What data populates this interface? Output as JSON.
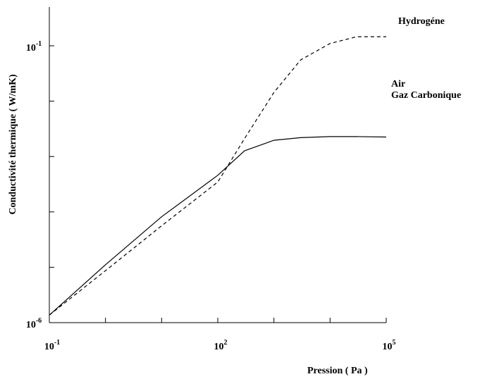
{
  "chart_data": {
    "type": "line",
    "xscale": "log",
    "yscale": "log",
    "xlabel": "Pression ( Pa )",
    "ylabel": "Conductivité thermique  ( W/mK)",
    "x_ticks": [
      {
        "value": 0.1,
        "base": "10",
        "exp": "-1"
      },
      {
        "value": 100,
        "base": "10",
        "exp": "2"
      },
      {
        "value": 100000,
        "base": "10",
        "exp": "5"
      }
    ],
    "y_ticks": [
      {
        "value": 1e-06,
        "base": "10",
        "exp": "-6"
      },
      {
        "value": 0.1,
        "base": "10",
        "exp": "-1"
      }
    ],
    "xlim": [
      0.1,
      100000
    ],
    "ylim": [
      1e-06,
      0.1
    ],
    "grid": false,
    "series": [
      {
        "name": "Hydrogéne",
        "style": "dashed",
        "color": "#000000",
        "x": [
          0.1,
          1,
          10,
          100,
          300,
          1000,
          3000,
          10000,
          30000,
          100000
        ],
        "y": [
          1.37e-06,
          8.7e-06,
          5.61e-05,
          0.000346,
          0.00211,
          0.0144,
          0.0557,
          0.11,
          0.146,
          0.146
        ]
      },
      {
        "name": "Air",
        "label2": "Gaz Carbonique",
        "style": "solid",
        "color": "#000000",
        "x": [
          0.1,
          1,
          10,
          100,
          300,
          1000,
          3000,
          10000,
          30000,
          100000
        ],
        "y": [
          1.37e-06,
          1.11e-05,
          8.17e-05,
          0.000459,
          0.00127,
          0.00197,
          0.00219,
          0.00229,
          0.00229,
          0.00225
        ]
      }
    ]
  }
}
